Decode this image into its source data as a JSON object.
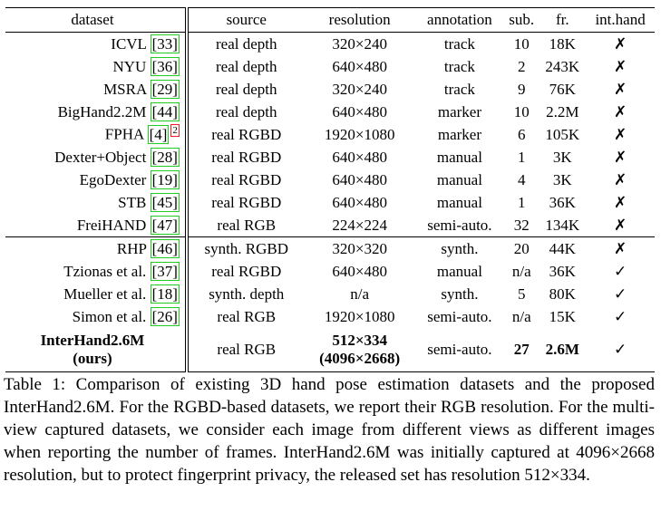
{
  "table": {
    "columns": [
      "dataset",
      "source",
      "resolution",
      "annotation",
      "sub.",
      "fr.",
      "int.hand"
    ],
    "rows": [
      {
        "dataset": "ICVL",
        "cite": "[33]",
        "cells": [
          "real depth",
          "320×240",
          "track",
          "10",
          "18K",
          "✗"
        ]
      },
      {
        "dataset": "NYU",
        "cite": "[36]",
        "cells": [
          "real depth",
          "640×480",
          "track",
          "2",
          "243K",
          "✗"
        ]
      },
      {
        "dataset": "MSRA",
        "cite": "[29]",
        "cells": [
          "real depth",
          "320×240",
          "track",
          "9",
          "76K",
          "✗"
        ]
      },
      {
        "dataset": "BigHand2.2M",
        "cite": "[44]",
        "cells": [
          "real depth",
          "640×480",
          "marker",
          "10",
          "2.2M",
          "✗"
        ]
      },
      {
        "dataset": "FPHA",
        "cite": "[4]",
        "footnote": "2",
        "cells": [
          "real RGBD",
          "1920×1080",
          "marker",
          "6",
          "105K",
          "✗"
        ]
      },
      {
        "dataset": "Dexter+Object",
        "cite": "[28]",
        "cells": [
          "real RGBD",
          "640×480",
          "manual",
          "1",
          "3K",
          "✗"
        ]
      },
      {
        "dataset": "EgoDexter",
        "cite": "[19]",
        "cells": [
          "real RGBD",
          "640×480",
          "manual",
          "4",
          "3K",
          "✗"
        ]
      },
      {
        "dataset": "STB",
        "cite": "[45]",
        "cells": [
          "real RGBD",
          "640×480",
          "manual",
          "1",
          "36K",
          "✗"
        ]
      },
      {
        "dataset": "FreiHAND",
        "cite": "[47]",
        "cells": [
          "real RGB",
          "224×224",
          "semi-auto.",
          "32",
          "134K",
          "✗"
        ]
      },
      {
        "dataset": "RHP",
        "cite": "[46]",
        "cells": [
          "synth. RGBD",
          "320×320",
          "synth.",
          "20",
          "44K",
          "✗"
        ]
      },
      {
        "dataset": "Tzionas et al.",
        "cite": "[37]",
        "cells": [
          "real RGBD",
          "640×480",
          "manual",
          "n/a",
          "36K",
          "✓"
        ]
      },
      {
        "dataset": "Mueller et al.",
        "cite": "[18]",
        "cells": [
          "synth. depth",
          "n/a",
          "synth.",
          "5",
          "80K",
          "✓"
        ]
      },
      {
        "dataset": "Simon et al.",
        "cite": "[26]",
        "cells": [
          "real RGB",
          "1920×1080",
          "semi-auto.",
          "n/a",
          "15K",
          "✓"
        ]
      },
      {
        "dataset": "InterHand2.6M",
        "note": "(ours)",
        "cells": [
          "real RGB",
          [
            "512×334",
            "(4096×2668)"
          ],
          "semi-auto.",
          "27",
          "2.6M",
          "✓"
        ]
      }
    ],
    "caption": "Table 1: Comparison of existing 3D hand pose estimation datasets and the proposed InterHand2.6M. For the RGBD-based datasets, we report their RGB resolution. For the multi-view captured datasets, we consider each image from different views as different images when reporting the number of frames. InterHand2.6M was initially captured at 4096×2668 resolution, but to protect fingerprint privacy, the released set has resolution 512×334."
  }
}
